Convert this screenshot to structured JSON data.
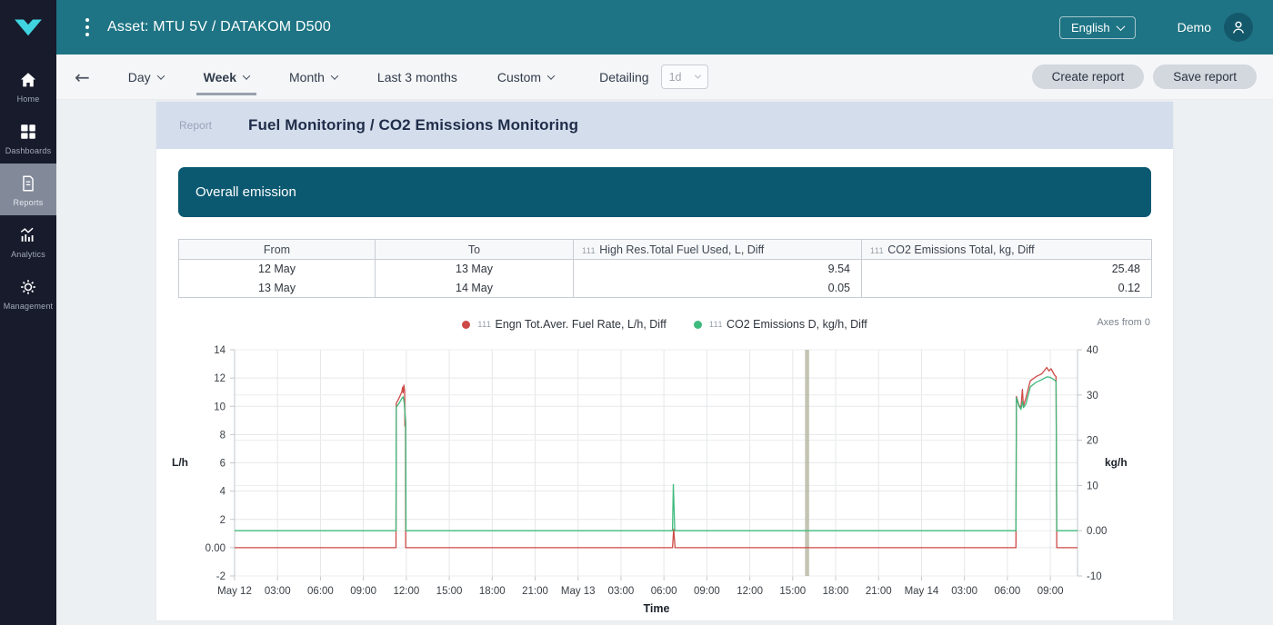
{
  "topbar": {
    "title": "Asset: MTU 5V / DATAKOM D500",
    "language": "English",
    "user": "Demo"
  },
  "sidebar": {
    "items": [
      {
        "label": "Home",
        "icon": "home-icon",
        "active": false
      },
      {
        "label": "Dashboards",
        "icon": "dashboards-icon",
        "active": false
      },
      {
        "label": "Reports",
        "icon": "reports-icon",
        "active": true
      },
      {
        "label": "Analytics",
        "icon": "analytics-icon",
        "active": false
      },
      {
        "label": "Management",
        "icon": "management-icon",
        "active": false
      }
    ]
  },
  "toolbar": {
    "periods": [
      {
        "label": "Day",
        "chevron": true,
        "selected": false
      },
      {
        "label": "Week",
        "chevron": true,
        "selected": true
      },
      {
        "label": "Month",
        "chevron": true,
        "selected": false
      },
      {
        "label": "Last 3 months",
        "chevron": false,
        "selected": false
      },
      {
        "label": "Custom",
        "chevron": true,
        "selected": false
      }
    ],
    "detailing_label": "Detailing",
    "detailing_value": "1d",
    "create_report": "Create report",
    "save_report": "Save report"
  },
  "report": {
    "breadcrumb": "Report",
    "title": "Fuel Monitoring / CO2 Emissions Monitoring",
    "section_title": "Overall emission"
  },
  "table": {
    "columns": [
      {
        "label": "From",
        "prefix": "",
        "header_align": "c",
        "cell_align": "c"
      },
      {
        "label": "To",
        "prefix": "",
        "header_align": "c",
        "cell_align": "c"
      },
      {
        "label": "High Res.Total Fuel Used, L, Diff",
        "prefix": "111",
        "header_align": "l",
        "cell_align": "r"
      },
      {
        "label": "CO2 Emissions Total, kg, Diff",
        "prefix": "111",
        "header_align": "l",
        "cell_align": "r"
      }
    ],
    "rows": [
      [
        "12 May",
        "13 May",
        "9.54",
        "25.48"
      ],
      [
        "13 May",
        "14 May",
        "0.05",
        "0.12"
      ]
    ]
  },
  "colors": {
    "topbar_teal": "#1e7484",
    "banner_teal": "#0b5971",
    "sidebar_bg": "#171b2b",
    "logo_cyan": "#3fd4df",
    "series_red": "#ce4a46",
    "series_green": "#3fba7d"
  },
  "chart_data": {
    "type": "line",
    "xlabel": "Time",
    "axes_note": "Axes from 0",
    "grid": true,
    "legend_position": "top-center",
    "left_axis": {
      "unit": "L/h",
      "min": -2,
      "max": 14,
      "ticks": [
        14,
        12,
        10,
        8,
        6,
        4,
        2,
        0,
        -2
      ],
      "zero_label": "0.00"
    },
    "right_axis": {
      "unit": "kg/h",
      "min": -10,
      "max": 40,
      "ticks": [
        40,
        30,
        20,
        10,
        0,
        -10
      ],
      "zero_label": "0.00"
    },
    "x_domain_hours": [
      0,
      58.9
    ],
    "x_ticks": [
      {
        "t": 0,
        "label": "May 12"
      },
      {
        "t": 3,
        "label": "03:00"
      },
      {
        "t": 6,
        "label": "06:00"
      },
      {
        "t": 9,
        "label": "09:00"
      },
      {
        "t": 12,
        "label": "12:00"
      },
      {
        "t": 15,
        "label": "15:00"
      },
      {
        "t": 18,
        "label": "18:00"
      },
      {
        "t": 21,
        "label": "21:00"
      },
      {
        "t": 24,
        "label": "May 13"
      },
      {
        "t": 27,
        "label": "03:00"
      },
      {
        "t": 30,
        "label": "06:00"
      },
      {
        "t": 33,
        "label": "09:00"
      },
      {
        "t": 36,
        "label": "12:00"
      },
      {
        "t": 39,
        "label": "15:00"
      },
      {
        "t": 42,
        "label": "18:00"
      },
      {
        "t": 45,
        "label": "21:00"
      },
      {
        "t": 48,
        "label": "May 14"
      },
      {
        "t": 51,
        "label": "03:00"
      },
      {
        "t": 54,
        "label": "06:00"
      },
      {
        "t": 57,
        "label": "09:00"
      }
    ],
    "time_marker_hour": 40,
    "series": [
      {
        "name": "Engn Tot.Aver. Fuel Rate, L/h, Diff",
        "prefix": "111",
        "color": "#ce4a46",
        "axis": "left",
        "points": [
          [
            0,
            0
          ],
          [
            11.28,
            0
          ],
          [
            11.3,
            10.2
          ],
          [
            11.5,
            10.6
          ],
          [
            11.68,
            11.0
          ],
          [
            11.74,
            11.35
          ],
          [
            11.78,
            10.95
          ],
          [
            11.83,
            11.5
          ],
          [
            11.88,
            11.05
          ],
          [
            11.9,
            8.6
          ],
          [
            11.94,
            8.6
          ],
          [
            11.96,
            0
          ],
          [
            30.6,
            0
          ],
          [
            30.68,
            1.3
          ],
          [
            30.78,
            0
          ],
          [
            54.6,
            0
          ],
          [
            54.63,
            10.7
          ],
          [
            54.8,
            10.1
          ],
          [
            54.95,
            9.9
          ],
          [
            55.05,
            11.2
          ],
          [
            55.12,
            10.0
          ],
          [
            55.3,
            10.6
          ],
          [
            55.6,
            11.8
          ],
          [
            56.0,
            12.1
          ],
          [
            56.4,
            12.3
          ],
          [
            56.75,
            12.75
          ],
          [
            56.9,
            12.5
          ],
          [
            57.05,
            12.65
          ],
          [
            57.3,
            12.2
          ],
          [
            57.4,
            12.1
          ],
          [
            57.45,
            0
          ],
          [
            58.9,
            0
          ]
        ]
      },
      {
        "name": "CO2 Emissions D, kg/h, Diff",
        "prefix": "111",
        "color": "#3fba7d",
        "axis": "right",
        "points": [
          [
            0,
            0
          ],
          [
            11.28,
            0
          ],
          [
            11.3,
            27.3
          ],
          [
            11.5,
            28.2
          ],
          [
            11.68,
            29.2
          ],
          [
            11.78,
            29.6
          ],
          [
            11.85,
            28.3
          ],
          [
            11.9,
            26.0
          ],
          [
            11.95,
            24.0
          ],
          [
            11.98,
            0
          ],
          [
            30.6,
            0
          ],
          [
            30.66,
            10.2
          ],
          [
            30.76,
            0
          ],
          [
            54.6,
            0
          ],
          [
            54.63,
            29.4
          ],
          [
            54.8,
            27.6
          ],
          [
            54.95,
            26.8
          ],
          [
            55.05,
            28.6
          ],
          [
            55.12,
            27.2
          ],
          [
            55.3,
            28.0
          ],
          [
            55.6,
            31.8
          ],
          [
            56.0,
            32.8
          ],
          [
            56.4,
            33.4
          ],
          [
            56.75,
            34.0
          ],
          [
            57.0,
            33.9
          ],
          [
            57.3,
            33.3
          ],
          [
            57.4,
            33.0
          ],
          [
            57.45,
            0
          ],
          [
            58.9,
            0
          ]
        ]
      }
    ]
  }
}
